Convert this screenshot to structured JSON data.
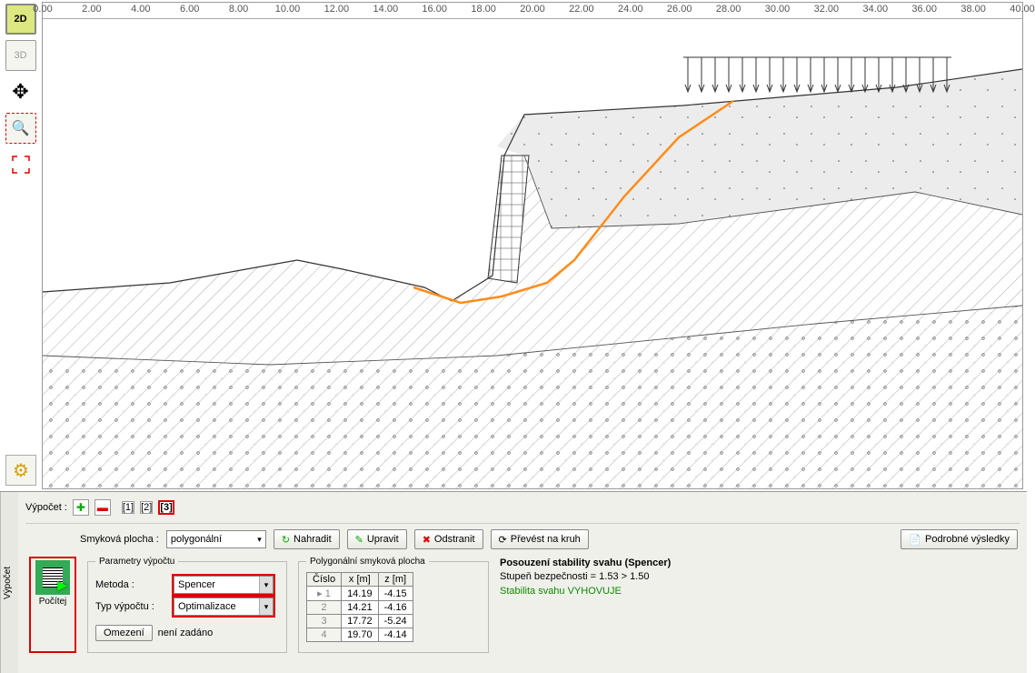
{
  "calc_bar": {
    "label": "Výpočet :",
    "nums": [
      "[1]",
      "[2]",
      "[3]"
    ],
    "active": 2
  },
  "slip": {
    "label": "Smyková plocha :",
    "value": "polygonální"
  },
  "buttons": {
    "replace": "Nahradit",
    "edit": "Upravit",
    "delete": "Odstranit",
    "convert": "Převést na kruh",
    "detail": "Podrobné výsledky"
  },
  "compute_label": "Počítej",
  "params": {
    "legend": "Parametry výpočtu",
    "method_label": "Metoda :",
    "method_value": "Spencer",
    "type_label": "Typ výpočtu :",
    "type_value": "Optimalizace",
    "restrict": "Omezení",
    "restrict_val": "není zadáno"
  },
  "poly": {
    "legend": "Polygonální smyková plocha",
    "headers": [
      "Číslo",
      "x [m]",
      "z [m]"
    ],
    "rows": [
      {
        "n": "1",
        "x": "14.19",
        "z": "-4.15"
      },
      {
        "n": "2",
        "x": "14.21",
        "z": "-4.16"
      },
      {
        "n": "3",
        "x": "17.72",
        "z": "-5.24"
      },
      {
        "n": "4",
        "x": "19.70",
        "z": "-4.14"
      }
    ]
  },
  "results": {
    "title": "Posouzení stability svahu (Spencer)",
    "line2": "Stupeň bezpečnosti = 1.53 > 1.50",
    "ok": "Stabilita svahu VYHOVUJE"
  },
  "side_tab": "Výpočet",
  "ruler_ticks": [
    "0.00",
    "2.00",
    "4.00",
    "6.00",
    "8.00",
    "10.00",
    "12.00",
    "14.00",
    "16.00",
    "18.00",
    "20.00",
    "22.00",
    "24.00",
    "26.00",
    "28.00",
    "30.00",
    "32.00",
    "34.00",
    "36.00",
    "38.00",
    "40.00"
  ],
  "colors": {
    "slip_line": "#ff8c1a",
    "hatch": "#777",
    "highlight": "#d00000"
  }
}
